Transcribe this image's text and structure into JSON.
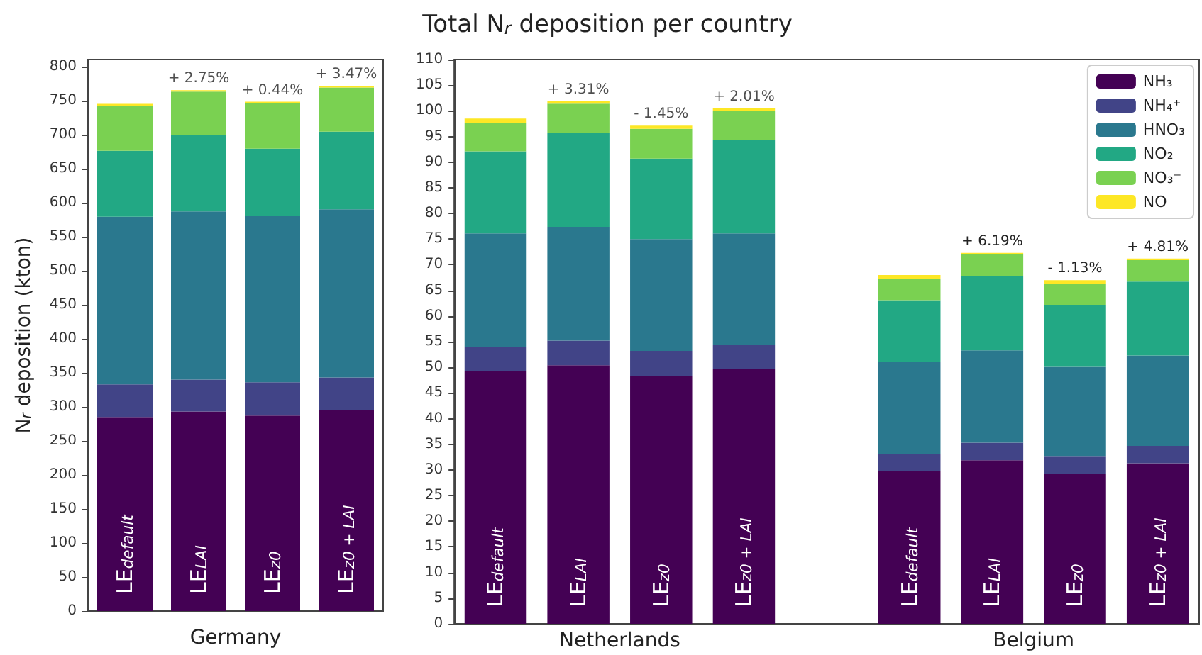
{
  "chart_data": [
    {
      "type": "bar",
      "stacked": true,
      "xlabel": "Germany",
      "ylabel": "N$_{r}$ deposition (kton)",
      "categories": [
        "LE$_{default}$",
        "LE$_{LAI}$",
        "LE$_{z0}$",
        "LE$_{z0 + LAI}$"
      ],
      "series": [
        {
          "color": "#440154",
          "values": [
            285,
            293,
            287,
            295
          ]
        },
        {
          "color": "#414487",
          "values": [
            48,
            47,
            49,
            48
          ]
        },
        {
          "color": "#2a788e",
          "values": [
            246,
            247,
            244,
            247
          ]
        },
        {
          "color": "#22a884",
          "values": [
            97,
            112,
            99,
            114
          ]
        },
        {
          "color": "#7ad151",
          "values": [
            66,
            64,
            67,
            65
          ]
        },
        {
          "color": "#fde725",
          "values": [
            3,
            2,
            2,
            2
          ]
        }
      ],
      "ylim": [
        0,
        810
      ],
      "yticks": [
        0,
        50,
        100,
        150,
        200,
        250,
        300,
        350,
        400,
        450,
        500,
        550,
        600,
        650,
        700,
        750,
        800
      ],
      "annotations": [
        {
          "text": "+ 2.75%",
          "x": "LE$_{LAI}$",
          "y": 765
        },
        {
          "text": "+ 0.44%",
          "x": "LE$_{z0}$",
          "y": 748
        },
        {
          "text": "+ 3.47%",
          "x": "LE$_{z0 + LAI}$",
          "y": 771
        }
      ],
      "legend": false,
      "grid": false
    },
    {
      "type": "bar",
      "stacked": true,
      "title": "Total N$_{r}$ deposition per country",
      "categories": [
        "LE$_{default}$",
        "LE$_{LAI}$",
        "LE$_{z0}$",
        "LE$_{z0 + LAI}$",
        null,
        "LE$_{default}$",
        "LE$_{LAI}$",
        "LE$_{z0}$",
        "LE$_{z0 + LAI}$"
      ],
      "series": [
        {
          "name": "NH₃",
          "color": "#440154",
          "values": [
            49.2,
            50.4,
            48.3,
            49.6,
            null,
            29.7,
            31.9,
            29.2,
            31.3
          ]
        },
        {
          "name": "NH₄⁺",
          "color": "#414487",
          "values": [
            4.8,
            4.8,
            4.9,
            4.7,
            null,
            3.4,
            3.4,
            3.5,
            3.4
          ]
        },
        {
          "name": "HNO₃",
          "color": "#2a788e",
          "values": [
            22.1,
            22.2,
            21.8,
            21.8,
            null,
            17.9,
            18.0,
            17.4,
            17.6
          ]
        },
        {
          "name": "NO₂",
          "color": "#22a884",
          "values": [
            16.0,
            18.3,
            15.7,
            18.3,
            null,
            12.1,
            14.4,
            12.1,
            14.4
          ]
        },
        {
          "name": "NO₃⁻",
          "color": "#7ad151",
          "values": [
            5.6,
            5.7,
            5.8,
            5.5,
            null,
            4.2,
            4.3,
            4.1,
            4.2
          ]
        },
        {
          "name": "NO",
          "color": "#fde725",
          "values": [
            0.8,
            0.5,
            0.6,
            0.6,
            null,
            0.7,
            0.3,
            0.7,
            0.3
          ]
        }
      ],
      "ylim": [
        0,
        110
      ],
      "yticks": [
        0,
        5,
        10,
        15,
        20,
        25,
        30,
        35,
        40,
        45,
        50,
        55,
        60,
        65,
        70,
        75,
        80,
        85,
        90,
        95,
        100,
        105,
        110
      ],
      "annotations": [
        "Netherlands",
        "Belgium",
        {
          "text": "+ 3.31%",
          "x": "LE$_{LAI}$",
          "y": 101.9
        },
        {
          "text": "- 1.45%",
          "x": "LE$_{z0}$",
          "y": 97.1
        },
        {
          "text": "+ 2.01%",
          "x": "LE$_{z0 + LAI}$",
          "y": 100.5
        },
        "+ 6.19%",
        "- 1.13%",
        "+ 4.81%"
      ],
      "legend": "top right",
      "grid": false
    }
  ]
}
